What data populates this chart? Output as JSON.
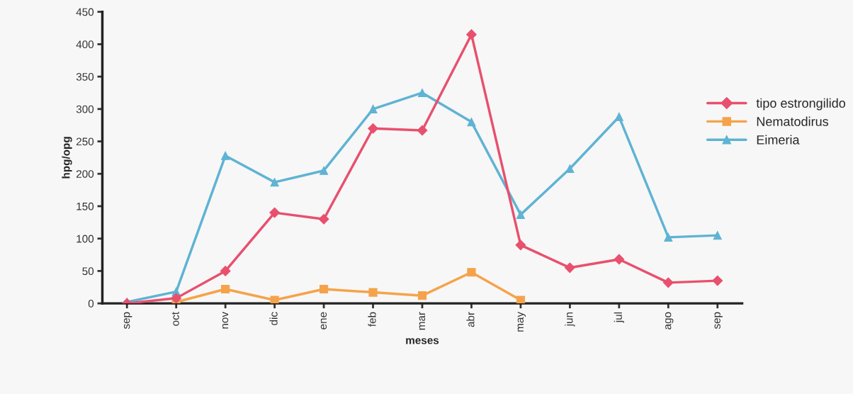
{
  "chart_data": {
    "type": "line",
    "xlabel": "meses",
    "ylabel": "hpg/opg",
    "categories": [
      "sep",
      "oct",
      "nov",
      "dic",
      "ene",
      "feb",
      "mar",
      "abr",
      "may",
      "jun",
      "jul",
      "ago",
      "sep"
    ],
    "series": [
      {
        "name": "tipo estrongilido",
        "color": "#e8506e",
        "marker": "diamond",
        "values": [
          0,
          8,
          50,
          140,
          130,
          270,
          267,
          415,
          90,
          55,
          68,
          32,
          35
        ]
      },
      {
        "name": "Nematodirus",
        "color": "#f5a34a",
        "marker": "square",
        "values": [
          null,
          2,
          22,
          5,
          22,
          17,
          12,
          48,
          5,
          null,
          null,
          null,
          null
        ]
      },
      {
        "name": "Eimeria",
        "color": "#5fb3d3",
        "marker": "triangle",
        "values": [
          2,
          18,
          228,
          187,
          205,
          300,
          325,
          280,
          137,
          208,
          288,
          102,
          105
        ]
      }
    ],
    "ylim": [
      0,
      450
    ],
    "yticks": [
      0,
      50,
      100,
      150,
      200,
      250,
      300,
      350,
      400,
      450
    ],
    "grid": false,
    "legend": "right"
  }
}
